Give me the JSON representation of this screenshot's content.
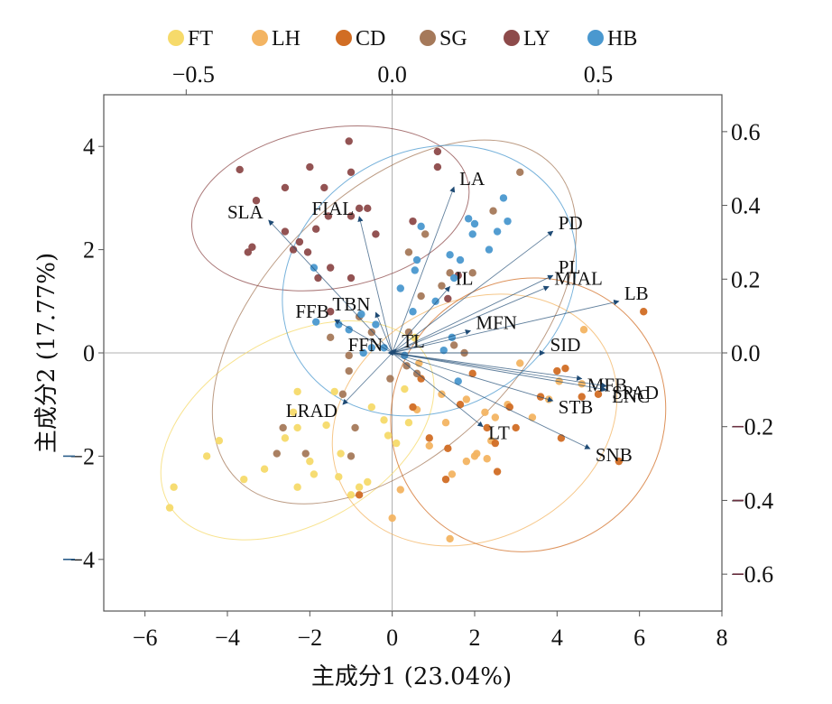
{
  "chart_data": {
    "type": "scatter",
    "subtype": "PCA biplot",
    "xlabel": "主成分1 (23.04%)",
    "ylabel": "主成分2 (17.77%)",
    "xlim": [
      -7,
      8
    ],
    "ylim": [
      -5,
      5
    ],
    "x_ticks": [
      "−6",
      "−4",
      "−2",
      "0",
      "2",
      "4",
      "6",
      "8"
    ],
    "y_ticks": [
      "−4",
      "−2",
      "0",
      "2",
      "4"
    ],
    "top_axis": {
      "range": [
        -0.7,
        0.8
      ],
      "ticks": [
        "−0.5",
        "0.0",
        "0.5"
      ]
    },
    "right_axis": {
      "range": [
        -0.7,
        0.7
      ],
      "ticks": [
        "−0.6",
        "−0.4",
        "−0.2",
        "0.0",
        "0.2",
        "0.4",
        "0.6"
      ]
    },
    "colors": {
      "axis": "#555555",
      "arrow": "#1e4a74",
      "left_tick_mark": "#2a5d8a",
      "right_tick_mark": "#6b3040"
    },
    "legend_position": "top",
    "series": [
      {
        "name": "FT",
        "color": "#f6da6a",
        "points": [
          [
            -5.4,
            -3.0
          ],
          [
            -5.3,
            -2.6
          ],
          [
            -4.5,
            -2.0
          ],
          [
            -4.2,
            -1.7
          ],
          [
            -3.6,
            -2.45
          ],
          [
            -3.1,
            -2.25
          ],
          [
            -2.6,
            -1.65
          ],
          [
            -2.3,
            -2.6
          ],
          [
            -2.3,
            -1.45
          ],
          [
            -2.4,
            -1.15
          ],
          [
            -2.0,
            -2.1
          ],
          [
            -1.9,
            -2.35
          ],
          [
            -1.6,
            -1.4
          ],
          [
            -1.4,
            -0.75
          ],
          [
            -1.3,
            -2.4
          ],
          [
            -1.25,
            -1.95
          ],
          [
            -1.0,
            -2.75
          ],
          [
            -0.8,
            -2.6
          ],
          [
            -0.6,
            -2.5
          ],
          [
            -0.2,
            -1.3
          ],
          [
            -0.1,
            -1.6
          ],
          [
            0.1,
            -1.75
          ],
          [
            0.3,
            -0.7
          ],
          [
            0.4,
            -1.35
          ],
          [
            0.55,
            0.3
          ],
          [
            -0.5,
            -1.05
          ],
          [
            -2.3,
            -0.75
          ]
        ]
      },
      {
        "name": "LH",
        "color": "#f3b462",
        "points": [
          [
            0.2,
            -2.65
          ],
          [
            0.6,
            -1.1
          ],
          [
            0.9,
            -1.8
          ],
          [
            1.3,
            -1.35
          ],
          [
            1.45,
            -2.35
          ],
          [
            1.8,
            -0.9
          ],
          [
            2.0,
            -2.0
          ],
          [
            2.25,
            -1.15
          ],
          [
            2.3,
            -2.05
          ],
          [
            2.5,
            -1.25
          ],
          [
            2.8,
            -1.0
          ],
          [
            1.8,
            -2.1
          ],
          [
            3.4,
            -1.25
          ],
          [
            4.05,
            -0.55
          ],
          [
            4.6,
            -0.6
          ],
          [
            3.8,
            -0.9
          ],
          [
            3.1,
            -0.2
          ],
          [
            4.65,
            0.45
          ],
          [
            1.4,
            -3.6
          ],
          [
            0.0,
            -3.2
          ],
          [
            1.2,
            -0.8
          ],
          [
            2.05,
            -1.95
          ],
          [
            2.4,
            -1.7
          ],
          [
            0.65,
            -0.2
          ]
        ]
      },
      {
        "name": "CD",
        "color": "#d16d24",
        "points": [
          [
            0.7,
            -0.5
          ],
          [
            0.9,
            -1.65
          ],
          [
            1.3,
            -2.45
          ],
          [
            1.35,
            -1.85
          ],
          [
            1.65,
            -1.0
          ],
          [
            1.95,
            -0.4
          ],
          [
            2.3,
            -1.45
          ],
          [
            2.5,
            -1.75
          ],
          [
            2.55,
            -2.3
          ],
          [
            2.85,
            -1.05
          ],
          [
            3.0,
            -1.45
          ],
          [
            3.6,
            -0.85
          ],
          [
            4.0,
            -0.35
          ],
          [
            4.2,
            -0.3
          ],
          [
            4.1,
            -1.65
          ],
          [
            4.6,
            -0.85
          ],
          [
            5.0,
            -0.8
          ],
          [
            5.5,
            -2.1
          ],
          [
            6.1,
            0.8
          ],
          [
            -0.8,
            -2.75
          ],
          [
            0.5,
            -1.05
          ]
        ]
      },
      {
        "name": "SG",
        "color": "#a5795a",
        "points": [
          [
            0.4,
            0.4
          ],
          [
            0.35,
            -0.25
          ],
          [
            0.7,
            1.1
          ],
          [
            0.8,
            2.3
          ],
          [
            1.2,
            1.3
          ],
          [
            1.5,
            0.15
          ],
          [
            1.4,
            1.55
          ],
          [
            1.75,
            0.0
          ],
          [
            1.95,
            1.55
          ],
          [
            2.45,
            2.75
          ],
          [
            3.1,
            3.5
          ],
          [
            0.6,
            -0.4
          ],
          [
            0.4,
            1.95
          ],
          [
            -0.05,
            -0.5
          ],
          [
            -0.8,
            0.7
          ],
          [
            -1.05,
            -0.05
          ],
          [
            -1.05,
            -0.35
          ],
          [
            -1.0,
            -2.0
          ],
          [
            -1.2,
            -0.8
          ],
          [
            -0.9,
            -1.45
          ],
          [
            -2.1,
            -1.95
          ],
          [
            -2.65,
            -1.45
          ],
          [
            -2.8,
            -1.95
          ],
          [
            -1.5,
            0.3
          ],
          [
            -0.5,
            0.4
          ]
        ]
      },
      {
        "name": "LY",
        "color": "#8d4a4a",
        "points": [
          [
            -3.7,
            3.55
          ],
          [
            -3.3,
            2.95
          ],
          [
            -3.4,
            2.05
          ],
          [
            -3.5,
            1.95
          ],
          [
            -2.6,
            3.2
          ],
          [
            -2.6,
            2.35
          ],
          [
            -2.4,
            2.0
          ],
          [
            -2.25,
            2.15
          ],
          [
            -2.05,
            1.95
          ],
          [
            -2.0,
            3.6
          ],
          [
            -1.65,
            3.2
          ],
          [
            -1.55,
            2.65
          ],
          [
            -1.8,
            1.45
          ],
          [
            -1.85,
            2.4
          ],
          [
            -1.5,
            1.65
          ],
          [
            -1.0,
            3.5
          ],
          [
            -1.0,
            2.65
          ],
          [
            -1.05,
            4.1
          ],
          [
            -0.4,
            2.3
          ],
          [
            -0.6,
            2.8
          ],
          [
            -0.8,
            2.8
          ],
          [
            -1.0,
            1.45
          ],
          [
            0.5,
            2.55
          ],
          [
            1.1,
            3.9
          ],
          [
            1.1,
            3.6
          ],
          [
            1.6,
            1.5
          ],
          [
            -1.5,
            0.8
          ],
          [
            1.35,
            1.05
          ]
        ]
      },
      {
        "name": "HB",
        "color": "#4a98cf",
        "points": [
          [
            -1.9,
            1.65
          ],
          [
            -1.85,
            0.6
          ],
          [
            -1.3,
            0.55
          ],
          [
            -1.05,
            0.45
          ],
          [
            -0.75,
            0.75
          ],
          [
            -0.4,
            0.55
          ],
          [
            -0.5,
            0.1
          ],
          [
            -0.7,
            0.0
          ],
          [
            -0.2,
            0.1
          ],
          [
            0.2,
            1.25
          ],
          [
            0.3,
            -0.05
          ],
          [
            0.5,
            0.8
          ],
          [
            0.55,
            1.6
          ],
          [
            0.6,
            1.8
          ],
          [
            0.7,
            2.45
          ],
          [
            1.05,
            1.0
          ],
          [
            1.25,
            0.05
          ],
          [
            1.4,
            1.9
          ],
          [
            1.5,
            1.45
          ],
          [
            1.65,
            1.8
          ],
          [
            1.85,
            2.6
          ],
          [
            1.95,
            2.3
          ],
          [
            2.0,
            2.5
          ],
          [
            2.35,
            2.0
          ],
          [
            2.55,
            2.35
          ],
          [
            2.7,
            3.0
          ],
          [
            2.8,
            2.55
          ],
          [
            1.45,
            0.3
          ],
          [
            1.6,
            -0.55
          ]
        ]
      }
    ],
    "ellipses": [
      {
        "group": "FT",
        "color": "#f6da6a",
        "center": [
          -2.3,
          -1.5
        ],
        "rx": 3.6,
        "ry": 1.8,
        "angle_deg": 30
      },
      {
        "group": "LH",
        "color": "#f3b462",
        "center": [
          2.0,
          -1.3
        ],
        "rx": 3.6,
        "ry": 2.3,
        "angle_deg": 28
      },
      {
        "group": "CD",
        "color": "#d16d24",
        "center": [
          3.3,
          -1.2
        ],
        "rx": 3.4,
        "ry": 2.6,
        "angle_deg": 42
      },
      {
        "group": "SG",
        "color": "#a5795a",
        "center": [
          0.05,
          0.6
        ],
        "rx": 5.4,
        "ry": 2.5,
        "angle_deg": 45
      },
      {
        "group": "LY",
        "color": "#8d4a4a",
        "center": [
          -1.5,
          2.8
        ],
        "rx": 3.4,
        "ry": 1.55,
        "angle_deg": 10
      },
      {
        "group": "HB",
        "color": "#4a98cf",
        "center": [
          0.9,
          1.4
        ],
        "rx": 3.7,
        "ry": 2.5,
        "angle_deg": 30
      }
    ],
    "loadings": [
      {
        "name": "SLA",
        "x": -0.3,
        "y": 0.36
      },
      {
        "name": "FIAL",
        "x": -0.08,
        "y": 0.37
      },
      {
        "name": "LA",
        "x": 0.15,
        "y": 0.45
      },
      {
        "name": "PD",
        "x": 0.39,
        "y": 0.33
      },
      {
        "name": "PL",
        "x": 0.39,
        "y": 0.21
      },
      {
        "name": "MIAL",
        "x": 0.38,
        "y": 0.18
      },
      {
        "name": "LB",
        "x": 0.55,
        "y": 0.14
      },
      {
        "name": "IL",
        "x": 0.14,
        "y": 0.18
      },
      {
        "name": "TBN",
        "x": -0.04,
        "y": 0.11
      },
      {
        "name": "FFB",
        "x": -0.14,
        "y": 0.09
      },
      {
        "name": "TL",
        "x": 0.01,
        "y": 0.01
      },
      {
        "name": "FFN",
        "x": -0.01,
        "y": 0.0
      },
      {
        "name": "MFN",
        "x": 0.19,
        "y": 0.06
      },
      {
        "name": "SID",
        "x": 0.37,
        "y": 0.0
      },
      {
        "name": "MFB",
        "x": 0.46,
        "y": -0.07
      },
      {
        "name": "SPAD",
        "x": 0.52,
        "y": -0.09
      },
      {
        "name": "LNC",
        "x": 0.52,
        "y": -0.1
      },
      {
        "name": "STB",
        "x": 0.39,
        "y": -0.13
      },
      {
        "name": "SNB",
        "x": 0.48,
        "y": -0.26
      },
      {
        "name": "LT",
        "x": 0.22,
        "y": -0.2
      },
      {
        "name": "LRAD",
        "x": -0.12,
        "y": -0.14
      }
    ]
  }
}
